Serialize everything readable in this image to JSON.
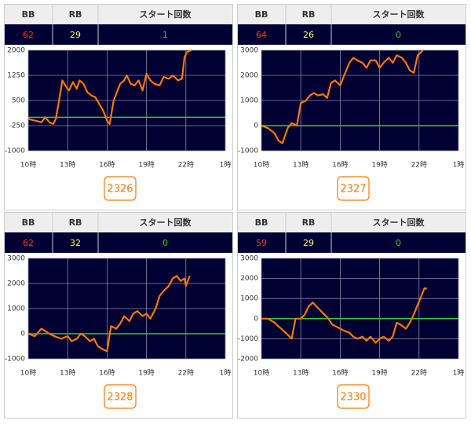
{
  "panels": [
    {
      "table": {
        "headers": [
          "BB",
          "RB",
          "スタート回数"
        ],
        "row": [
          62,
          29,
          1
        ]
      },
      "button": "2326"
    },
    {
      "table": {
        "headers": [
          "BB",
          "RB",
          "スタート回数"
        ],
        "row": [
          64,
          26,
          0
        ]
      },
      "button": "2327"
    },
    {
      "table": {
        "headers": [
          "BB",
          "RB",
          "スタート回数"
        ],
        "row": [
          62,
          32,
          0
        ]
      },
      "button": "2328"
    },
    {
      "table": {
        "headers": [
          "BB",
          "RB",
          "スタート回数"
        ],
        "row": [
          59,
          29,
          0
        ]
      },
      "button": "2330"
    }
  ],
  "table_colors": [
    "#ff3333",
    "#ffff66",
    "#33cc33"
  ],
  "chart_data": [
    {
      "type": "line",
      "background": "#000033",
      "grid": true,
      "hline": 0,
      "hline_color": "#33cc33",
      "xlim": [
        10,
        25
      ],
      "xticks": [
        {
          "value": 10,
          "label": "10時"
        },
        {
          "value": 13,
          "label": "13時"
        },
        {
          "value": 16,
          "label": "16時"
        },
        {
          "value": 19,
          "label": "19時"
        },
        {
          "value": 22,
          "label": "22時"
        },
        {
          "value": 25,
          "label": "1時"
        }
      ],
      "ylim": [
        -1000,
        2000
      ],
      "yticks": [
        -1000,
        -250,
        500,
        1250,
        2000
      ],
      "x": [
        10,
        10.5,
        11,
        11.3,
        11.6,
        11.9,
        12.1,
        12.3,
        12.6,
        12.9,
        13.1,
        13.4,
        13.7,
        13.9,
        14.2,
        14.5,
        14.8,
        15.1,
        15.4,
        15.7,
        16,
        16.2,
        16.5,
        16.8,
        17,
        17.3,
        17.5,
        17.8,
        18.1,
        18.4,
        18.7,
        19,
        19.3,
        19.6,
        20,
        20.3,
        20.7,
        21,
        21.4,
        21.7,
        21.9,
        22.1,
        22.4
      ],
      "series": [
        {
          "color": "#ff7700",
          "values": [
            -50,
            -100,
            -150,
            0,
            -150,
            -200,
            -50,
            400,
            1100,
            900,
            800,
            1050,
            850,
            1100,
            1000,
            750,
            650,
            600,
            400,
            200,
            -100,
            -200,
            500,
            800,
            1000,
            1100,
            1250,
            1000,
            950,
            1100,
            800,
            1300,
            1100,
            1000,
            950,
            1200,
            1150,
            1250,
            1100,
            1150,
            1800,
            1950,
            2000
          ]
        }
      ]
    },
    {
      "type": "line",
      "background": "#000033",
      "grid": true,
      "hline": 0,
      "hline_color": "#33cc33",
      "xlim": [
        10,
        25
      ],
      "xticks": [
        {
          "value": 10,
          "label": "10時"
        },
        {
          "value": 13,
          "label": "13時"
        },
        {
          "value": 16,
          "label": "16時"
        },
        {
          "value": 19,
          "label": "19時"
        },
        {
          "value": 22,
          "label": "22時"
        },
        {
          "value": 25,
          "label": "1時"
        }
      ],
      "ylim": [
        -1000,
        3000
      ],
      "yticks": [
        -1000,
        0,
        1000,
        2000,
        3000
      ],
      "x": [
        10,
        10.5,
        11,
        11.3,
        11.6,
        12,
        12.3,
        12.7,
        13,
        13.4,
        13.7,
        14,
        14.3,
        14.7,
        15,
        15.3,
        15.6,
        16,
        16.3,
        16.7,
        17,
        17.3,
        17.7,
        18,
        18.3,
        18.7,
        19,
        19.3,
        19.7,
        20,
        20.3,
        20.7,
        21,
        21.3,
        21.6,
        21.9,
        22.3
      ],
      "series": [
        {
          "color": "#ff7700",
          "values": [
            0,
            -100,
            -300,
            -600,
            -700,
            -100,
            100,
            0,
            900,
            1000,
            1200,
            1300,
            1200,
            1250,
            1100,
            1700,
            1800,
            1600,
            2000,
            2500,
            2700,
            2600,
            2500,
            2300,
            2600,
            2600,
            2300,
            2500,
            2700,
            2500,
            2800,
            2700,
            2500,
            2200,
            2100,
            2800,
            3000
          ]
        }
      ]
    },
    {
      "type": "line",
      "background": "#000033",
      "grid": true,
      "hline": 0,
      "hline_color": "#33cc33",
      "xlim": [
        10,
        25
      ],
      "xticks": [
        {
          "value": 10,
          "label": "10時"
        },
        {
          "value": 13,
          "label": "13時"
        },
        {
          "value": 16,
          "label": "16時"
        },
        {
          "value": 19,
          "label": "19時"
        },
        {
          "value": 22,
          "label": "22時"
        },
        {
          "value": 25,
          "label": "1時"
        }
      ],
      "ylim": [
        -1000,
        3000
      ],
      "yticks": [
        -1000,
        0,
        1000,
        2000,
        3000
      ],
      "x": [
        10,
        10.5,
        11,
        11.3,
        11.6,
        12,
        12.5,
        13,
        13.3,
        13.7,
        14,
        14.3,
        14.7,
        15,
        15.3,
        15.6,
        16,
        16.3,
        16.7,
        17,
        17.3,
        17.7,
        18,
        18.3,
        18.7,
        19,
        19.3,
        19.7,
        20,
        20.3,
        20.7,
        21,
        21.3,
        21.6,
        21.9,
        22,
        22.3
      ],
      "series": [
        {
          "color": "#ff7700",
          "values": [
            0,
            -100,
            200,
            100,
            0,
            -100,
            -200,
            -100,
            -300,
            -200,
            0,
            -100,
            -300,
            -200,
            -500,
            -600,
            -700,
            300,
            200,
            400,
            700,
            500,
            800,
            900,
            700,
            800,
            600,
            1000,
            1500,
            1700,
            1900,
            2200,
            2300,
            2100,
            2200,
            1900,
            2300
          ]
        }
      ]
    },
    {
      "type": "line",
      "background": "#000033",
      "grid": true,
      "hline": 0,
      "hline_color": "#33cc33",
      "xlim": [
        10,
        25
      ],
      "xticks": [
        {
          "value": 10,
          "label": "10時"
        },
        {
          "value": 13,
          "label": "13時"
        },
        {
          "value": 16,
          "label": "16時"
        },
        {
          "value": 19,
          "label": "19時"
        },
        {
          "value": 22,
          "label": "22時"
        },
        {
          "value": 25,
          "label": "1時"
        }
      ],
      "ylim": [
        -2000,
        3000
      ],
      "yticks": [
        -2000,
        -1000,
        0,
        1000,
        2000,
        3000
      ],
      "x": [
        10,
        10.5,
        11,
        11.5,
        12,
        12.3,
        12.6,
        13,
        13.3,
        13.6,
        13.9,
        14.2,
        14.5,
        14.8,
        15.1,
        15.4,
        15.7,
        16,
        16.3,
        16.7,
        17,
        17.3,
        17.7,
        18,
        18.3,
        18.7,
        19,
        19.3,
        19.7,
        20,
        20.3,
        20.6,
        21,
        21.3,
        21.6,
        21.9,
        22.1,
        22.4,
        22.6
      ],
      "series": [
        {
          "color": "#ff7700",
          "values": [
            0,
            0,
            -200,
            -500,
            -800,
            -1000,
            0,
            0,
            200,
            600,
            800,
            600,
            400,
            200,
            0,
            -300,
            -400,
            -500,
            -600,
            -700,
            -900,
            -1000,
            -900,
            -1100,
            -900,
            -1200,
            -1000,
            -900,
            -1100,
            -900,
            -200,
            -300,
            -500,
            -200,
            200,
            700,
            1000,
            1500,
            1500
          ]
        }
      ]
    }
  ]
}
